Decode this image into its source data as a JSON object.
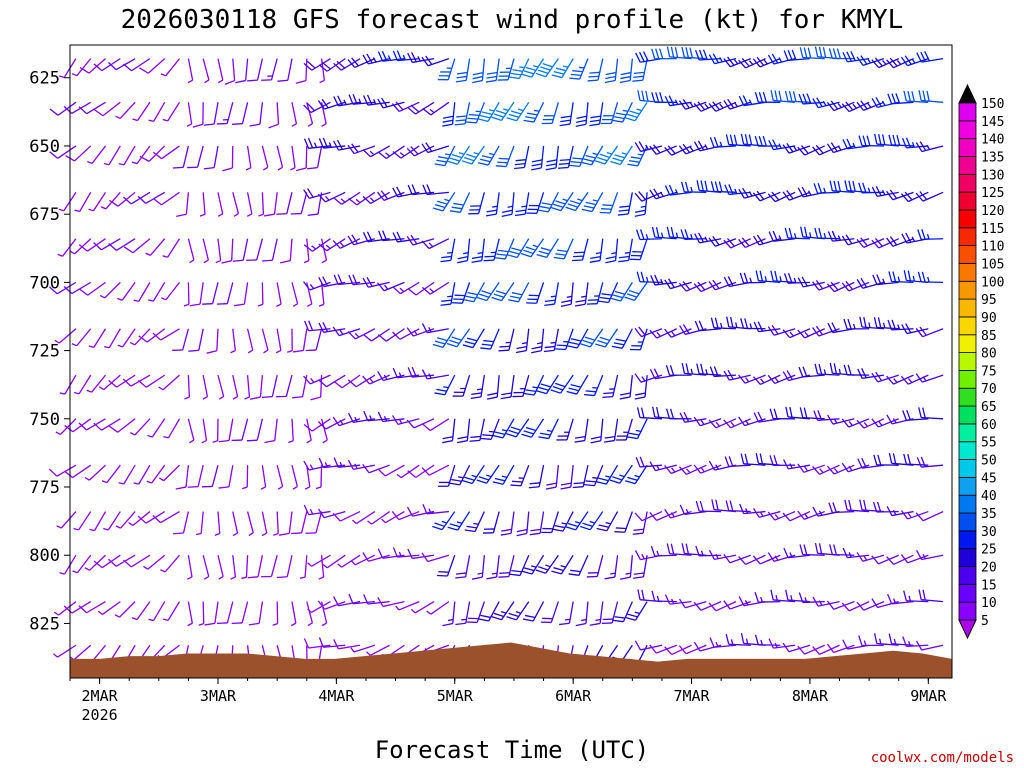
{
  "chart_data": {
    "type": "wind-barb-profile",
    "title": "2026030118 GFS forecast wind profile (kt) for KMYL",
    "xlabel": "Forecast Time (UTC)",
    "ylabel": "",
    "credit": "coolwx.com/models",
    "x_ticks": [
      {
        "label": "2MAR",
        "sub": "2026",
        "day": 0
      },
      {
        "label": "3MAR",
        "sub": "",
        "day": 1
      },
      {
        "label": "4MAR",
        "sub": "",
        "day": 2
      },
      {
        "label": "5MAR",
        "sub": "",
        "day": 3
      },
      {
        "label": "6MAR",
        "sub": "",
        "day": 4
      },
      {
        "label": "7MAR",
        "sub": "",
        "day": 5
      },
      {
        "label": "8MAR",
        "sub": "",
        "day": 6
      },
      {
        "label": "9MAR",
        "sub": "",
        "day": 7
      }
    ],
    "y_ticks": [
      625,
      650,
      675,
      700,
      725,
      750,
      775,
      800,
      825
    ],
    "ylim": [
      613,
      845
    ],
    "xlim_days": [
      -0.25,
      7.2
    ],
    "colorbar": {
      "label_values": [
        5,
        10,
        15,
        20,
        25,
        30,
        35,
        40,
        45,
        50,
        55,
        60,
        65,
        70,
        75,
        80,
        85,
        90,
        95,
        100,
        105,
        110,
        115,
        120,
        125,
        130,
        135,
        140,
        145,
        150
      ],
      "colors": [
        "#8a00ff",
        "#6a00ff",
        "#4b00ee",
        "#2000d8",
        "#0018f0",
        "#0050f0",
        "#0078f0",
        "#10a0f0",
        "#00c8e8",
        "#00e8d0",
        "#00f0a0",
        "#00e060",
        "#30e020",
        "#70f000",
        "#b8f800",
        "#f0f000",
        "#f8d800",
        "#f8b800",
        "#f89800",
        "#f87800",
        "#f85000",
        "#f82800",
        "#f80000",
        "#f00030",
        "#f00060",
        "#f00090",
        "#f000c0",
        "#f000e0",
        "#e000f0"
      ]
    },
    "terrain_color": "#9b522c",
    "barb_rows": {
      "levels": [
        618,
        634,
        650,
        667,
        684,
        700,
        717,
        734,
        750,
        767,
        784,
        800,
        817,
        833
      ],
      "segments": [
        {
          "from_day": -0.2,
          "to_day": 0.7,
          "speed": 8,
          "dir": 225
        },
        {
          "from_day": 0.75,
          "to_day": 1.9,
          "speed": 9,
          "dir": 180
        },
        {
          "from_day": 1.95,
          "to_day": 2.95,
          "speed": 22,
          "dir": 250
        },
        {
          "from_day": 3.0,
          "to_day": 4.7,
          "speed": 34,
          "dir": 200
        },
        {
          "from_day": 4.75,
          "to_day": 7.2,
          "speed": 28,
          "dir": 260
        }
      ]
    },
    "terrain_pressure": [
      838,
      838,
      837,
      837,
      836,
      836,
      836,
      837,
      838,
      838,
      837,
      836,
      835,
      834,
      833,
      832,
      834,
      836,
      837,
      838,
      839,
      838,
      838,
      838,
      838,
      838,
      837,
      836,
      835,
      836,
      838
    ]
  }
}
